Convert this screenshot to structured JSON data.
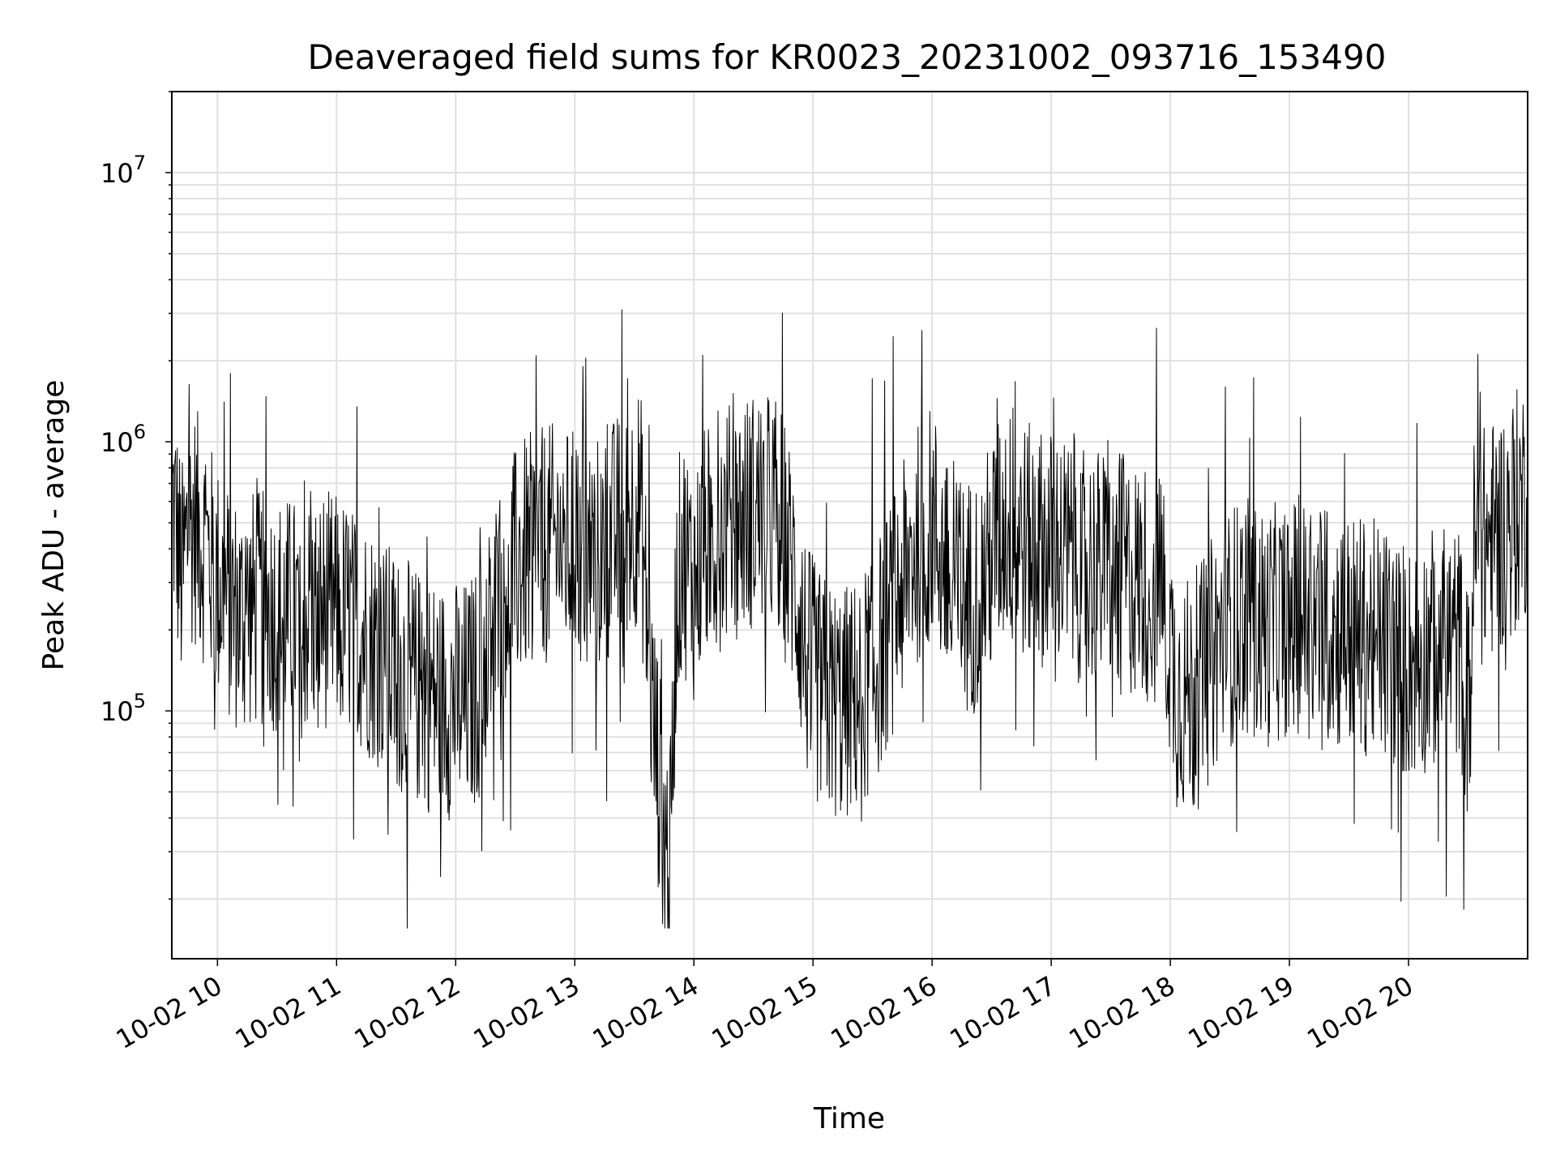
{
  "chart_data": {
    "type": "line",
    "title": "Deaveraged field sums for KR0023_20231002_093716_153490",
    "xlabel": "Time",
    "ylabel": "Peak ADU - average",
    "yscale": "log",
    "grid": true,
    "line_color": "#000000",
    "grid_color": "#e0e0e0",
    "x_ticks": [
      "10-02 10",
      "10-02 11",
      "10-02 12",
      "10-02 13",
      "10-02 14",
      "10-02 15",
      "10-02 16",
      "10-02 17",
      "10-02 18",
      "10-02 19",
      "10-02 20"
    ],
    "x_tick_hours": [
      10,
      11,
      12,
      13,
      14,
      15,
      16,
      17,
      18,
      19,
      20
    ],
    "xlim": [
      "2023-10-02 09:37",
      "2023-10-02 21:00"
    ],
    "y_ticks": [
      {
        "base": "10",
        "exp": "5",
        "value": 100000
      },
      {
        "base": "10",
        "exp": "6",
        "value": 1000000
      },
      {
        "base": "10",
        "exp": "7",
        "value": 10000000
      }
    ],
    "ylim": [
      12000,
      20000000
    ],
    "series": [
      {
        "x_hours": [
          9.62,
          9.65,
          9.7,
          9.75,
          9.8,
          9.9,
          10.0,
          10.1,
          10.2,
          10.3,
          10.5,
          10.7,
          10.9,
          11.1,
          11.3,
          11.5,
          11.7,
          11.9,
          12.1,
          12.2,
          12.4,
          12.6,
          12.8,
          13.0,
          13.2,
          13.4,
          13.55,
          13.65,
          13.7,
          13.75,
          13.8,
          13.85,
          13.9,
          14.0,
          14.1,
          14.3,
          14.5,
          14.7,
          14.85,
          14.95,
          15.05,
          15.15,
          15.25,
          15.35,
          15.45,
          15.55,
          15.7,
          15.85,
          16.0,
          16.2,
          16.4,
          16.6,
          16.8,
          17.0,
          17.2,
          17.4,
          17.6,
          17.8,
          17.95,
          18.05,
          18.2,
          18.4,
          18.6,
          18.8,
          19.0,
          19.2,
          19.4,
          19.6,
          19.8,
          20.0,
          20.2,
          20.4,
          20.45,
          20.5,
          20.55,
          20.65,
          20.75,
          20.85,
          20.95,
          21.0
        ],
        "y_baseline": [
          600000,
          500000,
          300000,
          450000,
          500000,
          400000,
          300000,
          250000,
          220000,
          240000,
          230000,
          220000,
          240000,
          220000,
          180000,
          140000,
          120000,
          110000,
          110000,
          130000,
          300000,
          380000,
          420000,
          400000,
          380000,
          480000,
          600000,
          100000,
          60000,
          35000,
          25000,
          250000,
          400000,
          300000,
          420000,
          500000,
          560000,
          550000,
          300000,
          150000,
          120000,
          110000,
          105000,
          110000,
          130000,
          160000,
          250000,
          400000,
          500000,
          260000,
          280000,
          500000,
          420000,
          400000,
          360000,
          340000,
          320000,
          300000,
          260000,
          120000,
          110000,
          180000,
          230000,
          200000,
          230000,
          220000,
          200000,
          190000,
          180000,
          150000,
          170000,
          180000,
          160000,
          100000,
          380000,
          420000,
          450000,
          520000,
          600000,
          620000
        ]
      }
    ]
  }
}
